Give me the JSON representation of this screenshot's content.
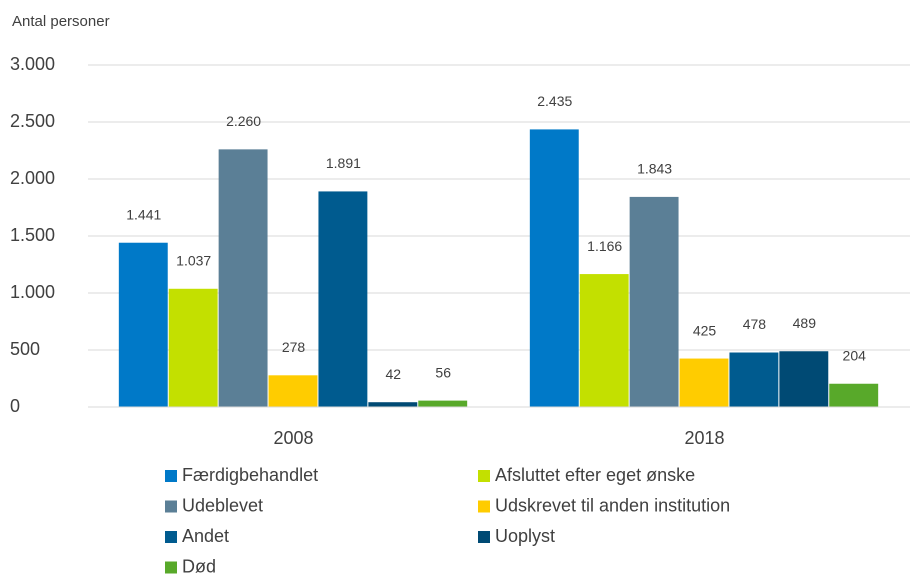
{
  "chart_data": {
    "type": "bar",
    "ylabel": "Antal personer",
    "categories": [
      "2008",
      "2018"
    ],
    "series": [
      {
        "name": "Færdigbehandlet",
        "color": "#0079c8",
        "values": [
          1441,
          2435
        ],
        "value_labels": [
          "1.441",
          "2.435"
        ]
      },
      {
        "name": "Afsluttet efter eget ønske",
        "color": "#c3e000",
        "values": [
          1037,
          1166
        ],
        "value_labels": [
          "1.037",
          "1.166"
        ]
      },
      {
        "name": "Udeblevet",
        "color": "#5b7f96",
        "values": [
          2260,
          1843
        ],
        "value_labels": [
          "2.260",
          "1.843"
        ]
      },
      {
        "name": "Udskrevet til anden institution",
        "color": "#ffcc00",
        "values": [
          278,
          425
        ],
        "value_labels": [
          "278",
          "425"
        ]
      },
      {
        "name": "Andet",
        "color": "#005b8f",
        "values": [
          1891,
          478
        ],
        "value_labels": [
          "1.891",
          "478"
        ]
      },
      {
        "name": "Uoplyst",
        "color": "#004a74",
        "values": [
          42,
          489
        ],
        "value_labels": [
          "42",
          "489"
        ]
      },
      {
        "name": "Død",
        "color": "#58a92a",
        "values": [
          56,
          204
        ],
        "value_labels": [
          "56",
          "204"
        ]
      }
    ],
    "ylim": [
      0,
      3000
    ],
    "yticks": [
      0,
      500,
      {
        "value": 1000,
        "label": "1.000"
      },
      {
        "value": 1500,
        "label": "1.500"
      },
      {
        "value": 2000,
        "label": "2.000"
      },
      {
        "value": 2500,
        "label": "2.500"
      },
      {
        "value": 3000,
        "label": "3.000"
      }
    ],
    "grid": true
  }
}
